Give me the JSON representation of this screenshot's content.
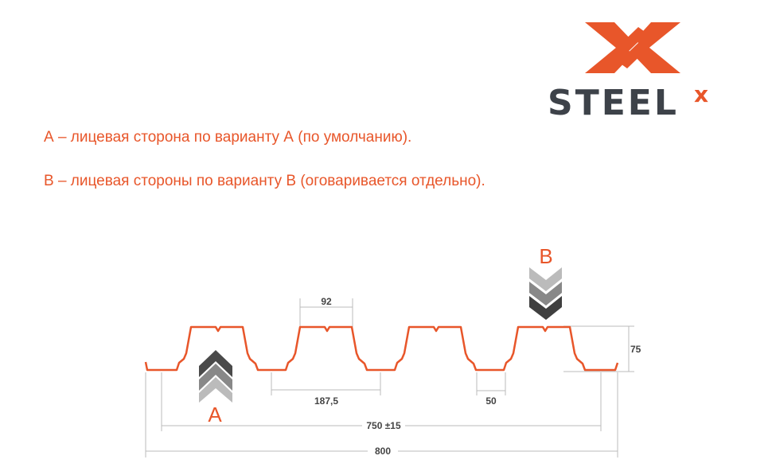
{
  "logo": {
    "text": "STEELX",
    "brand_color": "#e8562a",
    "text_color": "#3d4249"
  },
  "notes": [
    "А – лицевая сторона по варианту А (по умолчанию).",
    "В – лицевая стороны по варианту В (оговаривается отдельно)."
  ],
  "diagram": {
    "profile_color": "#e8562a",
    "side_a_label": "А",
    "side_b_label": "В",
    "dimensions": {
      "top_width": "92",
      "pitch": "187,5",
      "bottom_width": "50",
      "height": "75",
      "useful_width": "750 ±15",
      "total_width": "800"
    }
  }
}
